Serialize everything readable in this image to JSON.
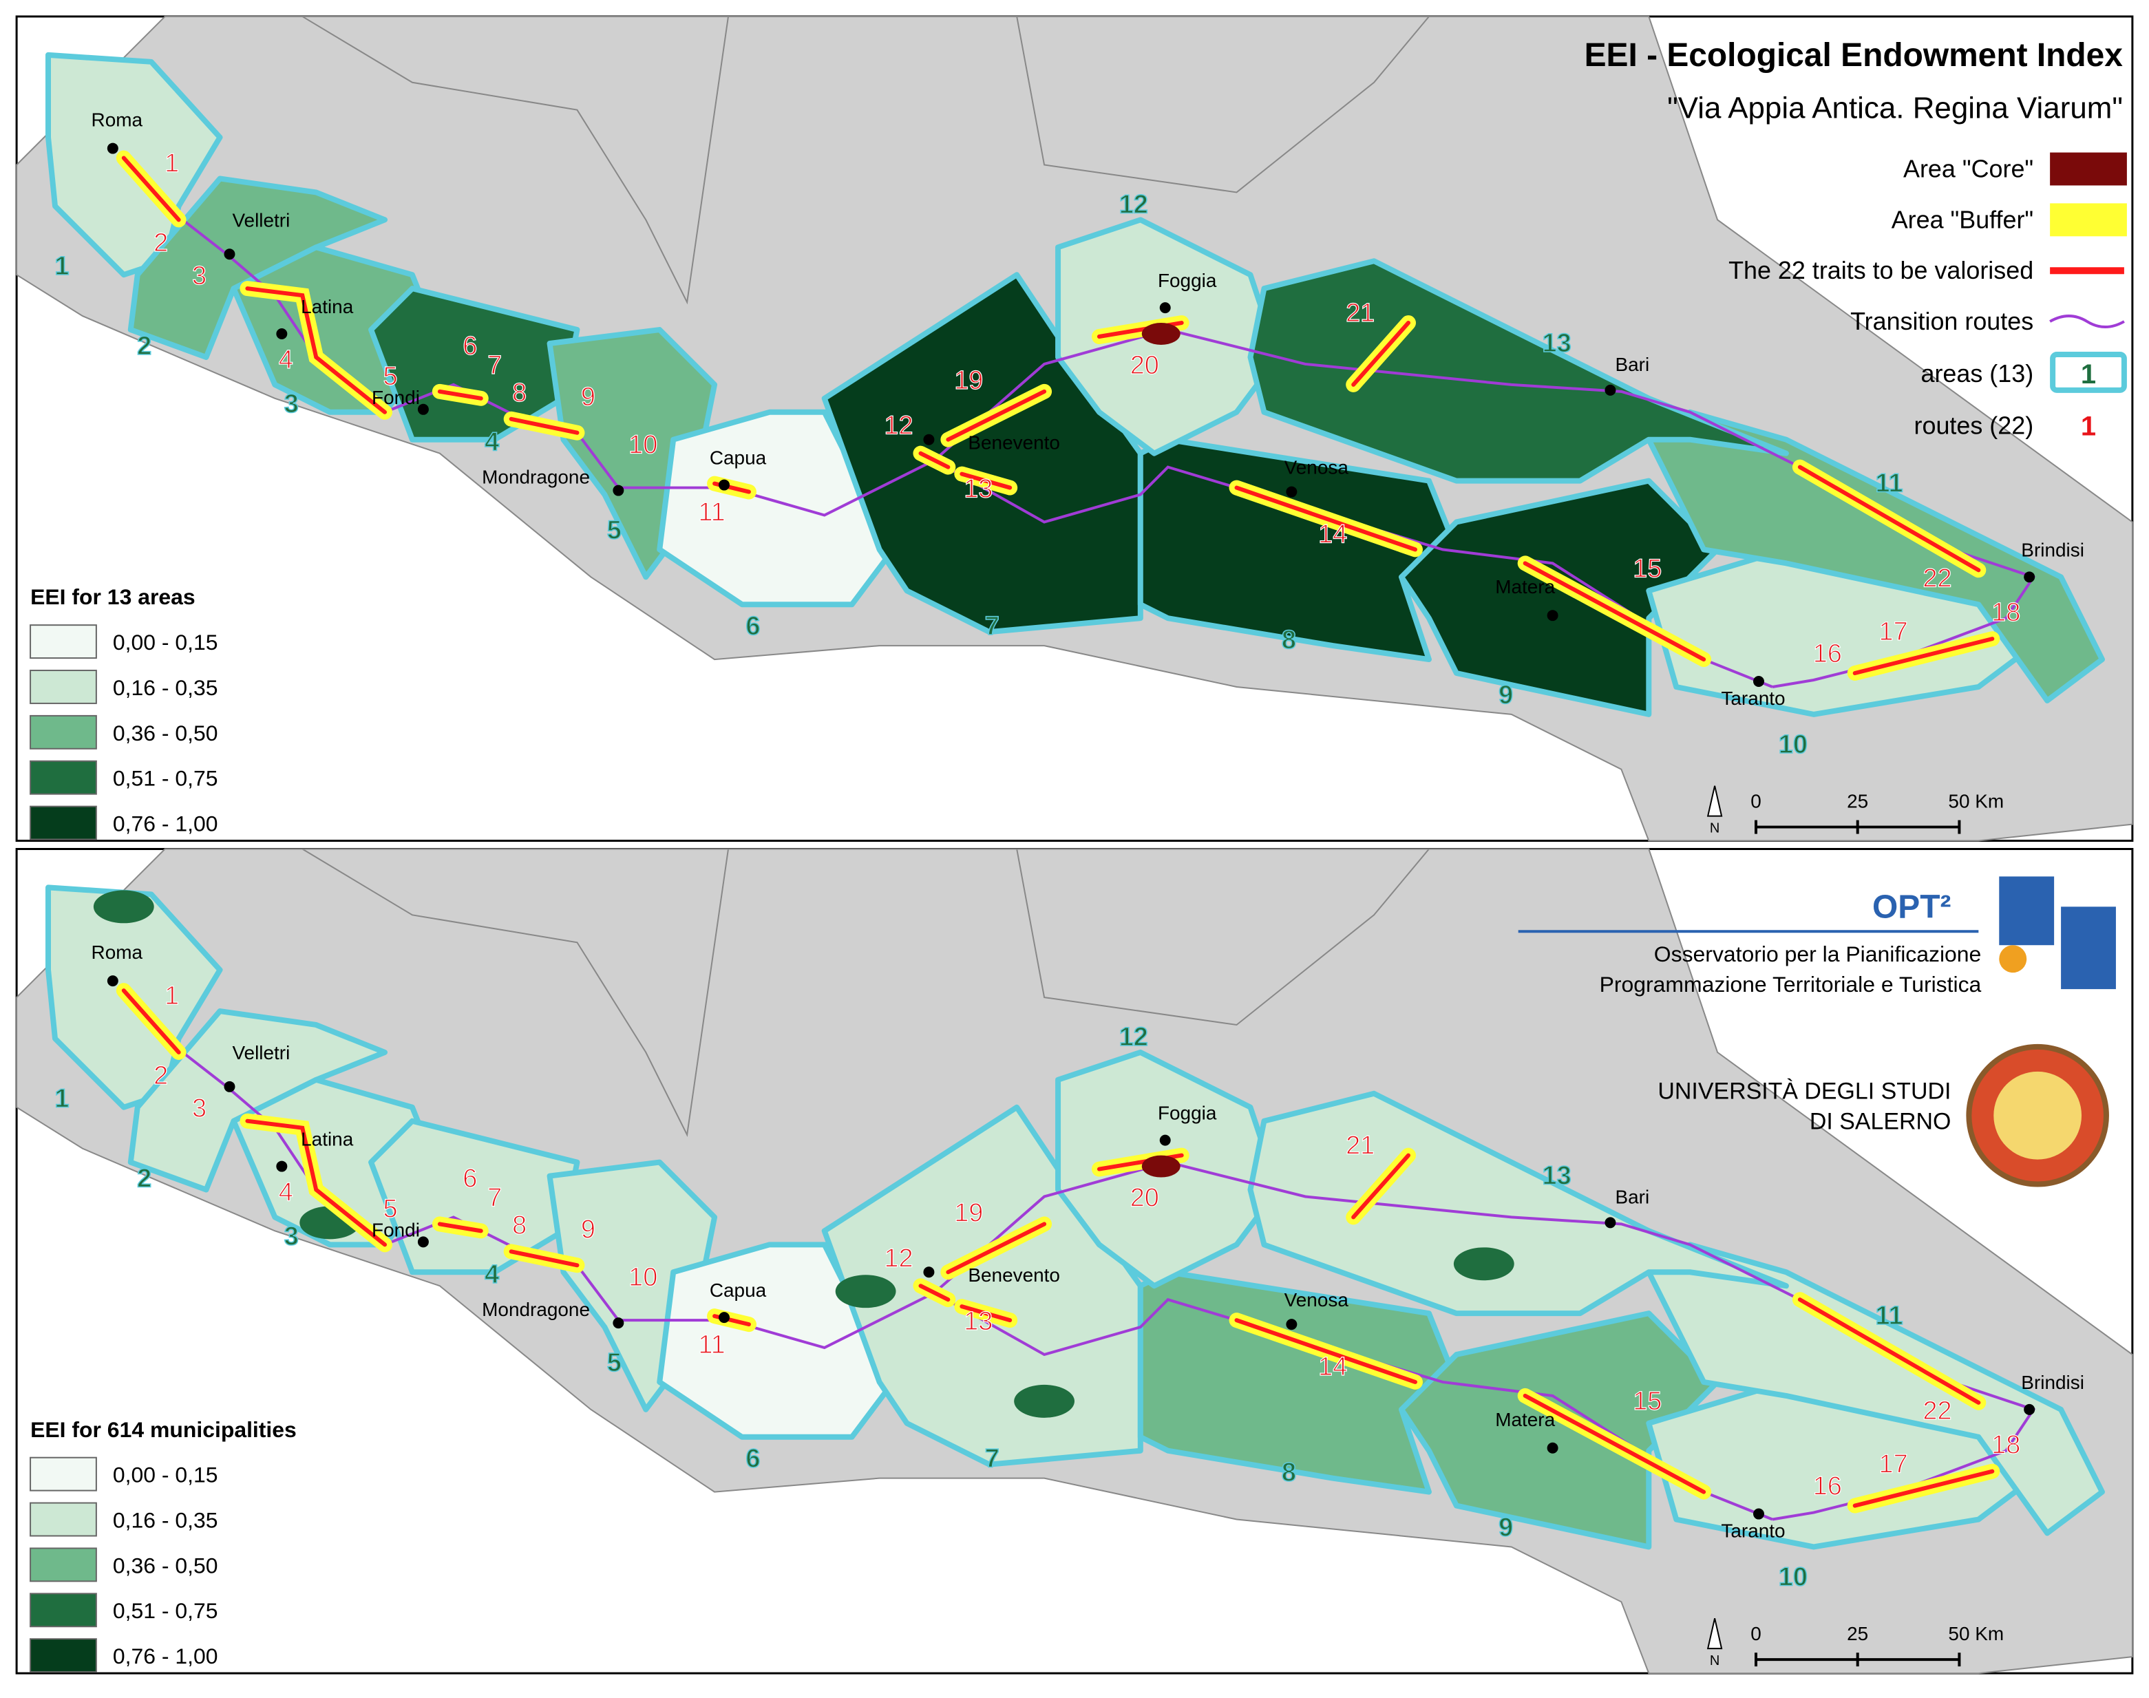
{
  "title": "EEI - Ecological Endowment Index",
  "subtitle": "\"Via Appia Antica. Regina Viarum\"",
  "legend": [
    {
      "label": "Area \"Core\"",
      "color": "#7a0a0a"
    },
    {
      "label": "Area \"Buffer\"",
      "color": "#ffff33"
    },
    {
      "label": "The 22 traits to be valorised",
      "color": "#ff1a1a"
    },
    {
      "label": "Transition routes",
      "color": "#a03cd6"
    }
  ],
  "areas_label": "areas (13)",
  "areas_symbol": "1",
  "routes_label": "routes (22)",
  "routes_symbol": "1",
  "cities": [
    "Roma",
    "Velletri",
    "Latina",
    "Fondi",
    "Mondragone",
    "Capua",
    "Benevento",
    "Foggia",
    "Venosa",
    "Bari",
    "Matera",
    "Taranto",
    "Brindisi"
  ],
  "area_numbers": [
    "1",
    "2",
    "3",
    "4",
    "5",
    "6",
    "7",
    "8",
    "9",
    "10",
    "11",
    "12",
    "13"
  ],
  "route_numbers": [
    "1",
    "2",
    "3",
    "4",
    "5",
    "6",
    "7",
    "8",
    "9",
    "10",
    "11",
    "12",
    "13",
    "14",
    "15",
    "16",
    "17",
    "18",
    "19",
    "20",
    "21",
    "22"
  ],
  "class_colors": [
    "#f2f9f4",
    "#cde8d4",
    "#6fb98b",
    "#1f6e3f",
    "#053d1c"
  ],
  "maps": [
    {
      "legend_title": "EEI for 13 areas",
      "classes": [
        "0,00 - 0,15",
        "0,16 - 0,35",
        "0,36 - 0,50",
        "0,51 - 0,75",
        "0,76 - 1,00"
      ]
    },
    {
      "legend_title": "EEI for 614 municipalities",
      "classes": [
        "0,00 - 0,15",
        "0,16 - 0,35",
        "0,36 - 0,50",
        "0,51 - 0,75",
        "0,76 - 1,00"
      ]
    }
  ],
  "scale_labels": [
    "0",
    "25",
    "50 Km"
  ],
  "north": "N",
  "logo": {
    "opt": "OPT²",
    "line1": "Osservatorio per la Pianificazione",
    "line2": "Programmazione Territoriale e Turistica"
  },
  "university": {
    "line1": "UNIVERSITÀ DEGLI STUDI",
    "line2": "DI SALERNO"
  }
}
